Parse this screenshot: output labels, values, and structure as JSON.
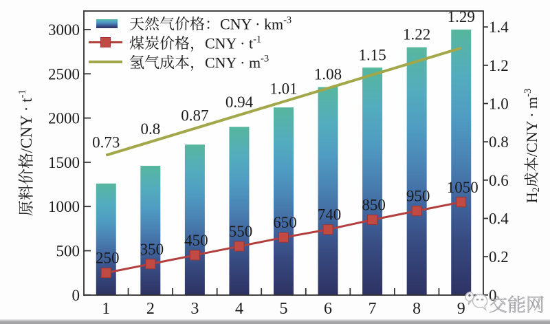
{
  "page": {
    "background": "#fdfdfd",
    "bottom_strip_color": "#a4a4a7"
  },
  "chart_data": {
    "type": "bar",
    "subtype": "bar-line-combo",
    "categories": [
      "1",
      "2",
      "3",
      "4",
      "5",
      "6",
      "7",
      "8",
      "9"
    ],
    "series": [
      {
        "name": "天然气价格：CNY · km⁻³",
        "type": "bar",
        "axis": "left",
        "values": [
          1260,
          1460,
          1700,
          1900,
          2120,
          2350,
          2570,
          2800,
          3000
        ],
        "gradient": [
          {
            "offset": 0,
            "color": "#57b69d"
          },
          {
            "offset": 0.17,
            "color": "#53adbd"
          },
          {
            "offset": 0.33,
            "color": "#4f9cc2"
          },
          {
            "offset": 0.48,
            "color": "#4a84b5"
          },
          {
            "offset": 0.64,
            "color": "#41659e"
          },
          {
            "offset": 0.8,
            "color": "#374a80"
          },
          {
            "offset": 1,
            "color": "#2e3263"
          }
        ]
      },
      {
        "name": "煤炭价格，CNY · t⁻¹",
        "type": "line",
        "axis": "left",
        "marker": "square",
        "color": "#b23f3e",
        "marker_color": "#c14b42",
        "values": [
          250,
          350,
          450,
          550,
          650,
          740,
          850,
          950,
          1050
        ],
        "value_labels": [
          "250",
          "350",
          "450",
          "550",
          "650",
          "740",
          "850",
          "950",
          "1050"
        ]
      },
      {
        "name": "氢气成本，CNY · m⁻³",
        "type": "line",
        "axis": "right",
        "marker": "none",
        "color": "#a2a84a",
        "values": [
          0.73,
          0.8,
          0.87,
          0.94,
          1.01,
          1.08,
          1.15,
          1.22,
          1.29
        ],
        "value_labels": [
          "0.73",
          "0.8",
          "0.87",
          "0.94",
          "1.01",
          "1.08",
          "1.15",
          "1.22",
          "1.29"
        ]
      }
    ],
    "left_axis": {
      "label": "原料价格/CNY · t⁻¹",
      "tick_labels": [
        "0",
        "500",
        "1000",
        "1500",
        "2000",
        "2500",
        "3000"
      ],
      "ticks": [
        0,
        500,
        1000,
        1500,
        2000,
        2500,
        3000
      ],
      "min": 0,
      "max": 3212
    },
    "right_axis": {
      "label": "H₂成本/CNY · m⁻³",
      "tick_labels": [
        "0",
        "0.2",
        "0.4",
        "0.6",
        "0.8",
        "1.0",
        "1.2",
        "1.4"
      ],
      "ticks": [
        0,
        0.2,
        0.4,
        0.6,
        0.8,
        1.0,
        1.2,
        1.4
      ],
      "min": 0,
      "max": 1.486
    },
    "x_axis": {
      "labels": [
        "1",
        "2",
        "3",
        "4",
        "5",
        "6",
        "7",
        "8",
        "9"
      ]
    },
    "legend": {
      "position": "top-left",
      "entries": [
        "天然气价格：CNY · km⁻³",
        "煤炭价格，CNY · t⁻¹",
        "氢气成本，CNY · m⁻³"
      ]
    },
    "grid": false,
    "frame_color": "#303030",
    "text_color": "#1b1b1b"
  },
  "watermark": {
    "text": "交能网",
    "icon": "chat-bubbles-icon",
    "color": "#b2b2b6"
  }
}
